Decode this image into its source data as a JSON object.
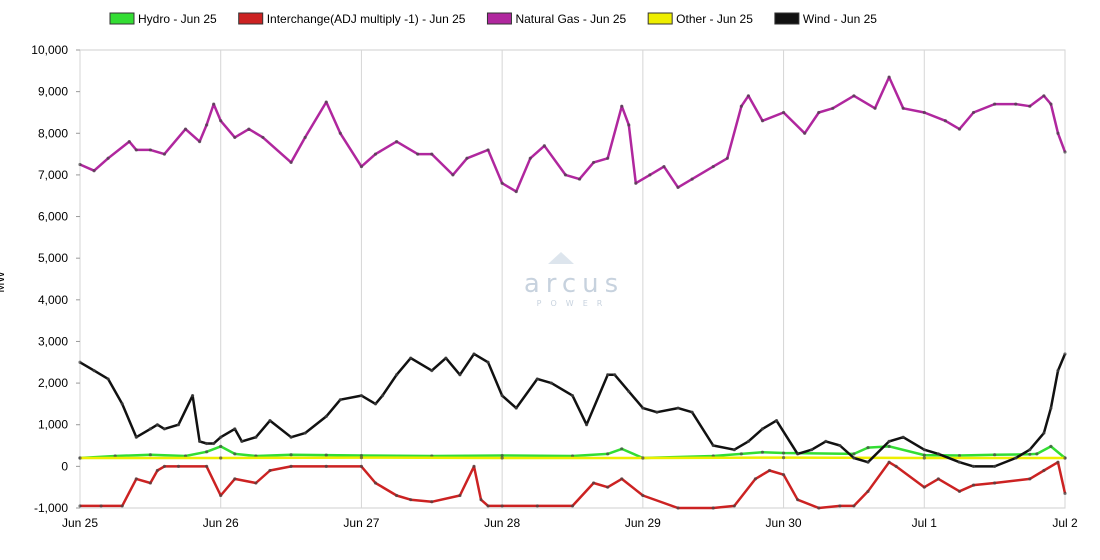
{
  "chart_data": {
    "type": "line",
    "title": "",
    "xlabel": "",
    "ylabel": "MW",
    "x_ticks": [
      "Jun 25",
      "Jun 26",
      "Jun 27",
      "Jun 28",
      "Jun 29",
      "Jun 30",
      "Jul 1",
      "Jul 2"
    ],
    "x_range_days": [
      0,
      7
    ],
    "ylim": [
      -1000,
      10000
    ],
    "y_ticks": [
      "-1,000",
      "0",
      "1,000",
      "2,000",
      "3,000",
      "4,000",
      "5,000",
      "6,000",
      "7,000",
      "8,000",
      "9,000",
      "10,000"
    ],
    "y_tick_values": [
      -1000,
      0,
      1000,
      2000,
      3000,
      4000,
      5000,
      6000,
      7000,
      8000,
      9000,
      10000
    ],
    "grid": true,
    "legend_position": "top",
    "watermark": {
      "logo_text": "arcus",
      "sub_text": "POWER"
    },
    "series": [
      {
        "name": "Hydro - Jun 25",
        "color": "#33dd33",
        "x": [
          0,
          0.25,
          0.5,
          0.75,
          0.9,
          1.0,
          1.1,
          1.25,
          1.5,
          1.75,
          2.0,
          2.5,
          3.0,
          3.5,
          3.75,
          3.85,
          4.0,
          4.5,
          4.7,
          4.85,
          5.0,
          5.5,
          5.6,
          5.75,
          6.0,
          6.25,
          6.5,
          6.75,
          6.8,
          6.9,
          7.0
        ],
        "y": [
          200,
          250,
          280,
          250,
          350,
          480,
          300,
          250,
          280,
          270,
          260,
          250,
          260,
          250,
          300,
          420,
          200,
          250,
          300,
          340,
          320,
          300,
          450,
          480,
          270,
          260,
          280,
          290,
          300,
          480,
          200
        ]
      },
      {
        "name": "Interchange(ADJ multiply -1) - Jun 25",
        "color": "#cc2222",
        "x": [
          0,
          0.15,
          0.3,
          0.4,
          0.5,
          0.55,
          0.6,
          0.7,
          0.9,
          1.0,
          1.1,
          1.25,
          1.35,
          1.5,
          1.75,
          2.0,
          2.1,
          2.25,
          2.35,
          2.5,
          2.7,
          2.8,
          2.85,
          2.9,
          3.0,
          3.25,
          3.5,
          3.65,
          3.75,
          3.85,
          4.0,
          4.25,
          4.5,
          4.65,
          4.8,
          4.9,
          5.0,
          5.1,
          5.25,
          5.4,
          5.5,
          5.6,
          5.75,
          5.8,
          6.0,
          6.1,
          6.25,
          6.35,
          6.5,
          6.75,
          6.85,
          6.95,
          7.0
        ],
        "y": [
          -950,
          -950,
          -950,
          -300,
          -400,
          -100,
          0,
          0,
          0,
          -700,
          -300,
          -400,
          -100,
          0,
          0,
          0,
          -400,
          -700,
          -800,
          -850,
          -700,
          0,
          -800,
          -950,
          -950,
          -950,
          -950,
          -400,
          -500,
          -300,
          -700,
          -1000,
          -1000,
          -950,
          -300,
          -100,
          -200,
          -800,
          -1000,
          -950,
          -950,
          -600,
          100,
          0,
          -500,
          -300,
          -600,
          -450,
          -400,
          -300,
          -100,
          100,
          -650
        ]
      },
      {
        "name": "Natural Gas - Jun 25",
        "color": "#b0279e",
        "x": [
          0,
          0.1,
          0.2,
          0.35,
          0.4,
          0.5,
          0.6,
          0.75,
          0.85,
          0.9,
          0.95,
          1.0,
          1.1,
          1.2,
          1.3,
          1.5,
          1.6,
          1.75,
          1.85,
          2.0,
          2.1,
          2.25,
          2.4,
          2.5,
          2.65,
          2.75,
          2.9,
          3.0,
          3.1,
          3.2,
          3.3,
          3.45,
          3.55,
          3.65,
          3.75,
          3.85,
          3.9,
          3.95,
          4.05,
          4.15,
          4.25,
          4.35,
          4.5,
          4.6,
          4.7,
          4.75,
          4.85,
          5.0,
          5.15,
          5.25,
          5.35,
          5.5,
          5.65,
          5.75,
          5.85,
          6.0,
          6.15,
          6.25,
          6.35,
          6.5,
          6.65,
          6.75,
          6.85,
          6.9,
          6.95,
          7.0
        ],
        "y": [
          7250,
          7100,
          7400,
          7800,
          7600,
          7600,
          7500,
          8100,
          7800,
          8200,
          8700,
          8300,
          7900,
          8100,
          7900,
          7300,
          7900,
          8750,
          8000,
          7200,
          7500,
          7800,
          7500,
          7500,
          7000,
          7400,
          7600,
          6800,
          6600,
          7400,
          7700,
          7000,
          6900,
          7300,
          7400,
          8650,
          8200,
          6800,
          7000,
          7200,
          6700,
          6900,
          7200,
          7400,
          8650,
          8900,
          8300,
          8500,
          8000,
          8500,
          8600,
          8900,
          8600,
          9350,
          8600,
          8500,
          8300,
          8100,
          8500,
          8700,
          8700,
          8650,
          8900,
          8700,
          8000,
          7550
        ]
      },
      {
        "name": "Other - Jun 25",
        "color": "#eeee00",
        "x": [
          0,
          1,
          2,
          3,
          4,
          5,
          6,
          7
        ],
        "y": [
          200,
          200,
          210,
          200,
          200,
          210,
          200,
          200
        ]
      },
      {
        "name": "Wind - Jun 25",
        "color": "#111111",
        "x": [
          0,
          0.1,
          0.2,
          0.3,
          0.4,
          0.5,
          0.55,
          0.6,
          0.7,
          0.8,
          0.85,
          0.9,
          0.95,
          1.0,
          1.1,
          1.15,
          1.25,
          1.35,
          1.5,
          1.6,
          1.75,
          1.85,
          2.0,
          2.1,
          2.15,
          2.25,
          2.35,
          2.5,
          2.6,
          2.7,
          2.8,
          2.9,
          3.0,
          3.1,
          3.25,
          3.35,
          3.5,
          3.6,
          3.75,
          3.8,
          3.9,
          4.0,
          4.1,
          4.25,
          4.35,
          4.5,
          4.65,
          4.75,
          4.85,
          4.95,
          5.1,
          5.2,
          5.3,
          5.4,
          5.5,
          5.6,
          5.75,
          5.85,
          6.0,
          6.1,
          6.25,
          6.35,
          6.5,
          6.65,
          6.75,
          6.85,
          6.9,
          6.95,
          7.0
        ],
        "y": [
          2500,
          2300,
          2100,
          1500,
          700,
          900,
          1000,
          900,
          1000,
          1700,
          600,
          550,
          550,
          700,
          900,
          600,
          700,
          1100,
          700,
          800,
          1200,
          1600,
          1700,
          1500,
          1700,
          2200,
          2600,
          2300,
          2600,
          2200,
          2700,
          2500,
          1700,
          1400,
          2100,
          2000,
          1700,
          1000,
          2200,
          2200,
          1800,
          1400,
          1300,
          1400,
          1300,
          500,
          400,
          600,
          900,
          1100,
          300,
          400,
          600,
          500,
          200,
          100,
          600,
          700,
          400,
          300,
          100,
          0,
          0,
          200,
          400,
          800,
          1400,
          2300,
          2700
        ]
      }
    ]
  }
}
